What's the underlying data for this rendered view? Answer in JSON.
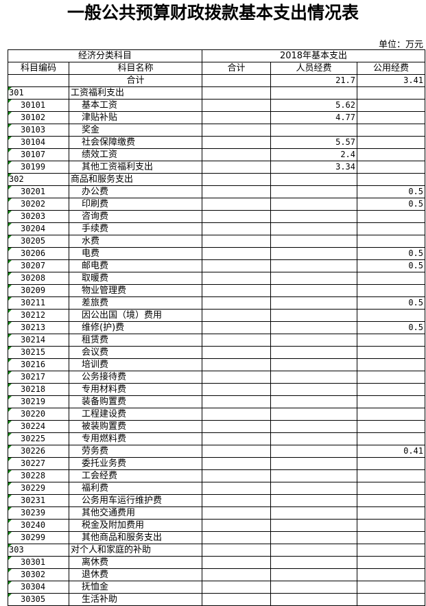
{
  "title": "一般公共预算财政拨款基本支出情况表",
  "unit": "单位：万元",
  "header": {
    "group_left": "经济分类科目",
    "group_right": "2018年基本支出",
    "code": "科目编码",
    "name": "科目名称",
    "total": "合计",
    "personnel": "人员经费",
    "public": "公用经费"
  },
  "total_row": {
    "name": "合计",
    "total": "",
    "personnel": "21.7",
    "public": "3.41"
  },
  "rows": [
    {
      "code": "301",
      "name": "工资福利支出",
      "group": true,
      "total": "",
      "personnel": "",
      "public": ""
    },
    {
      "code": "30101",
      "name": "基本工资",
      "total": "",
      "personnel": "5.62",
      "public": ""
    },
    {
      "code": "30102",
      "name": "津贴补贴",
      "total": "",
      "personnel": "4.77",
      "public": ""
    },
    {
      "code": "30103",
      "name": "奖金",
      "total": "",
      "personnel": "",
      "public": ""
    },
    {
      "code": "30104",
      "name": "社会保障缴费",
      "total": "",
      "personnel": "5.57",
      "public": ""
    },
    {
      "code": "30107",
      "name": "绩效工资",
      "total": "",
      "personnel": "2.4",
      "public": ""
    },
    {
      "code": "30199",
      "name": "其他工资福利支出",
      "total": "",
      "personnel": "3.34",
      "public": ""
    },
    {
      "code": "302",
      "name": "商品和服务支出",
      "group": true,
      "total": "",
      "personnel": "",
      "public": ""
    },
    {
      "code": "30201",
      "name": "办公费",
      "total": "",
      "personnel": "",
      "public": "0.5"
    },
    {
      "code": "30202",
      "name": "印刷费",
      "total": "",
      "personnel": "",
      "public": "0.5"
    },
    {
      "code": "30203",
      "name": "咨询费",
      "total": "",
      "personnel": "",
      "public": ""
    },
    {
      "code": "30204",
      "name": "手续费",
      "total": "",
      "personnel": "",
      "public": ""
    },
    {
      "code": "30205",
      "name": "水费",
      "total": "",
      "personnel": "",
      "public": ""
    },
    {
      "code": "30206",
      "name": "电费",
      "total": "",
      "personnel": "",
      "public": "0.5"
    },
    {
      "code": "30207",
      "name": "邮电费",
      "total": "",
      "personnel": "",
      "public": "0.5"
    },
    {
      "code": "30208",
      "name": "取暖费",
      "total": "",
      "personnel": "",
      "public": ""
    },
    {
      "code": "30209",
      "name": "物业管理费",
      "total": "",
      "personnel": "",
      "public": ""
    },
    {
      "code": "30211",
      "name": "差旅费",
      "total": "",
      "personnel": "",
      "public": "0.5"
    },
    {
      "code": "30212",
      "name": "因公出国（境）费用",
      "total": "",
      "personnel": "",
      "public": ""
    },
    {
      "code": "30213",
      "name": "维修(护)费",
      "total": "",
      "personnel": "",
      "public": "0.5"
    },
    {
      "code": "30214",
      "name": "租赁费",
      "total": "",
      "personnel": "",
      "public": ""
    },
    {
      "code": "30215",
      "name": "会议费",
      "total": "",
      "personnel": "",
      "public": ""
    },
    {
      "code": "30216",
      "name": "培训费",
      "total": "",
      "personnel": "",
      "public": ""
    },
    {
      "code": "30217",
      "name": "公务接待费",
      "total": "",
      "personnel": "",
      "public": ""
    },
    {
      "code": "30218",
      "name": "专用材料费",
      "total": "",
      "personnel": "",
      "public": ""
    },
    {
      "code": "30219",
      "name": "装备购置费",
      "total": "",
      "personnel": "",
      "public": ""
    },
    {
      "code": "30220",
      "name": "工程建设费",
      "total": "",
      "personnel": "",
      "public": ""
    },
    {
      "code": "30224",
      "name": "被装购置费",
      "total": "",
      "personnel": "",
      "public": ""
    },
    {
      "code": "30225",
      "name": "专用燃料费",
      "total": "",
      "personnel": "",
      "public": ""
    },
    {
      "code": "30226",
      "name": "劳务费",
      "total": "",
      "personnel": "",
      "public": "0.41"
    },
    {
      "code": "30227",
      "name": "委托业务费",
      "total": "",
      "personnel": "",
      "public": ""
    },
    {
      "code": "30228",
      "name": "工会经费",
      "total": "",
      "personnel": "",
      "public": ""
    },
    {
      "code": "30229",
      "name": "福利费",
      "total": "",
      "personnel": "",
      "public": ""
    },
    {
      "code": "30231",
      "name": "公务用车运行维护费",
      "total": "",
      "personnel": "",
      "public": ""
    },
    {
      "code": "30239",
      "name": "其他交通费用",
      "total": "",
      "personnel": "",
      "public": ""
    },
    {
      "code": "30240",
      "name": "税金及附加费用",
      "total": "",
      "personnel": "",
      "public": ""
    },
    {
      "code": "30299",
      "name": "其他商品和服务支出",
      "total": "",
      "personnel": "",
      "public": ""
    },
    {
      "code": "303",
      "name": "对个人和家庭的补助",
      "group": true,
      "total": "",
      "personnel": "",
      "public": ""
    },
    {
      "code": "30301",
      "name": "离休费",
      "total": "",
      "personnel": "",
      "public": ""
    },
    {
      "code": "30302",
      "name": "退休费",
      "total": "",
      "personnel": "",
      "public": ""
    },
    {
      "code": "30304",
      "name": "抚恤金",
      "total": "",
      "personnel": "",
      "public": ""
    },
    {
      "code": "30305",
      "name": "生活补助",
      "total": "",
      "personnel": "",
      "public": ""
    }
  ]
}
